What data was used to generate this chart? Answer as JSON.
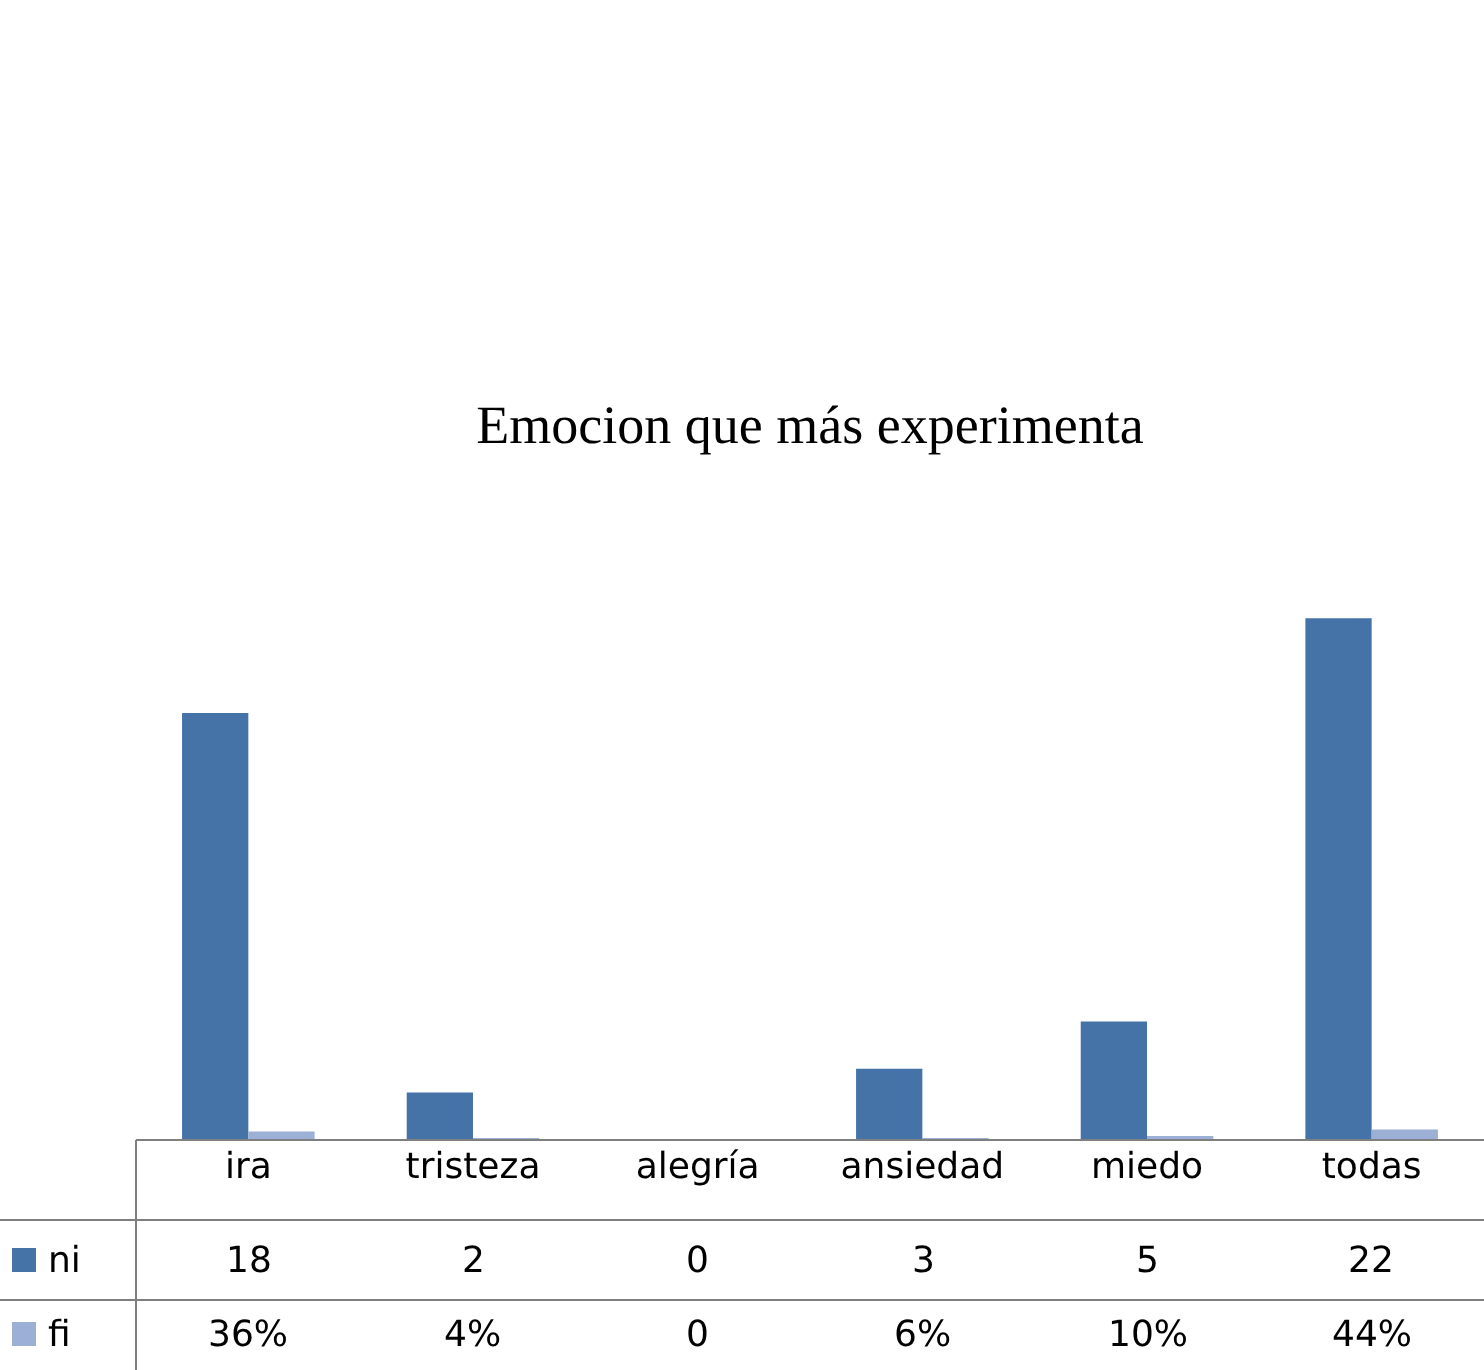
{
  "chart_data": {
    "type": "bar",
    "title": "Emocion que más experimenta",
    "categories": [
      "ira",
      "tristeza",
      "alegría",
      "ansiedad",
      "miedo",
      "todas"
    ],
    "series": [
      {
        "name": "ni",
        "color": "#4572a7",
        "values": [
          18,
          2,
          0,
          3,
          5,
          22
        ],
        "value_labels": [
          "18",
          "2",
          "0",
          "3",
          "5",
          "22"
        ]
      },
      {
        "name": "fi",
        "color": "#9bb0d4",
        "values": [
          0.36,
          0.04,
          0,
          0.06,
          0.1,
          0.44
        ],
        "value_labels": [
          "36%",
          "4%",
          "0",
          "6%",
          "10%",
          "44%"
        ]
      }
    ],
    "legend": "bottom left"
  }
}
